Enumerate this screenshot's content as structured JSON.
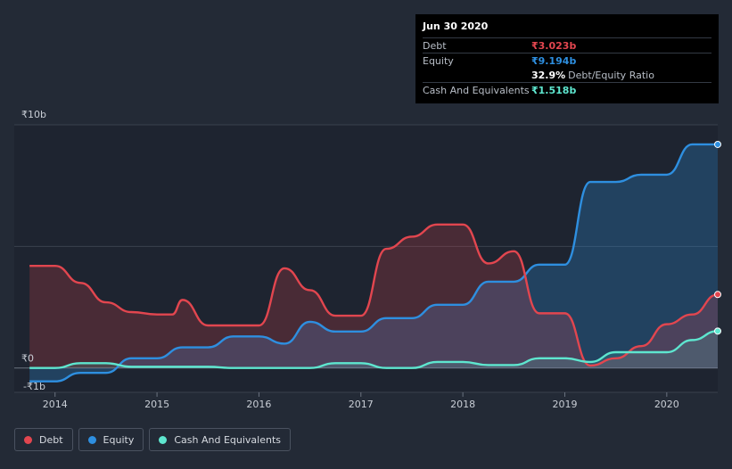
{
  "tooltip": {
    "date": "Jun 30 2020",
    "rows": [
      {
        "label": "Debt",
        "value": "₹3.023b"
      },
      {
        "label": "Equity",
        "value": "₹9.194b"
      },
      {
        "label": "",
        "value": "32.9%",
        "extra": "Debt/Equity Ratio"
      },
      {
        "label": "Cash And Equivalents",
        "value": "₹1.518b"
      }
    ]
  },
  "legend": [
    {
      "label": "Debt"
    },
    {
      "label": "Equity"
    },
    {
      "label": "Cash And Equivalents"
    }
  ],
  "colors": {
    "debt": "#e2464f",
    "equity": "#2e8fe0",
    "cash": "#5ee6cf",
    "background": "#232a36",
    "tooltip_bg": "#000000"
  },
  "chart_data": {
    "type": "area",
    "title": "",
    "xlabel": "",
    "ylabel": "",
    "ylim": [
      -1,
      10
    ],
    "y_ticks": [
      {
        "value": 10,
        "label": "₹10b"
      },
      {
        "value": 0,
        "label": "₹0"
      },
      {
        "value": -1,
        "label": "-₹1b"
      }
    ],
    "x_ticks": [
      {
        "value": 2014,
        "label": "2014"
      },
      {
        "value": 2015,
        "label": "2015"
      },
      {
        "value": 2016,
        "label": "2016"
      },
      {
        "value": 2017,
        "label": "2017"
      },
      {
        "value": 2018,
        "label": "2018"
      },
      {
        "value": 2019,
        "label": "2019"
      },
      {
        "value": 2020,
        "label": "2020"
      }
    ],
    "xlim": [
      2013.6,
      2020.5
    ],
    "series": [
      {
        "name": "Debt",
        "unit": "₹b",
        "points": [
          [
            2013.75,
            4.2
          ],
          [
            2014.0,
            4.2
          ],
          [
            2014.25,
            3.5
          ],
          [
            2014.5,
            2.7
          ],
          [
            2014.75,
            2.3
          ],
          [
            2015.0,
            2.2
          ],
          [
            2015.15,
            2.2
          ],
          [
            2015.25,
            2.8
          ],
          [
            2015.5,
            1.75
          ],
          [
            2015.75,
            1.75
          ],
          [
            2016.0,
            1.75
          ],
          [
            2016.25,
            4.1
          ],
          [
            2016.5,
            3.2
          ],
          [
            2016.75,
            2.15
          ],
          [
            2017.0,
            2.15
          ],
          [
            2017.25,
            4.9
          ],
          [
            2017.5,
            5.4
          ],
          [
            2017.75,
            5.9
          ],
          [
            2018.0,
            5.9
          ],
          [
            2018.25,
            4.3
          ],
          [
            2018.5,
            4.8
          ],
          [
            2018.75,
            2.25
          ],
          [
            2019.0,
            2.25
          ],
          [
            2019.25,
            0.1
          ],
          [
            2019.5,
            0.4
          ],
          [
            2019.75,
            0.9
          ],
          [
            2020.0,
            1.8
          ],
          [
            2020.25,
            2.2
          ],
          [
            2020.5,
            3.023
          ]
        ]
      },
      {
        "name": "Equity",
        "unit": "₹b",
        "points": [
          [
            2013.75,
            -0.55
          ],
          [
            2014.0,
            -0.55
          ],
          [
            2014.25,
            -0.2
          ],
          [
            2014.5,
            -0.2
          ],
          [
            2014.75,
            0.4
          ],
          [
            2015.0,
            0.4
          ],
          [
            2015.25,
            0.85
          ],
          [
            2015.5,
            0.85
          ],
          [
            2015.75,
            1.3
          ],
          [
            2016.0,
            1.3
          ],
          [
            2016.25,
            1.0
          ],
          [
            2016.5,
            1.9
          ],
          [
            2016.75,
            1.5
          ],
          [
            2017.0,
            1.5
          ],
          [
            2017.25,
            2.05
          ],
          [
            2017.5,
            2.05
          ],
          [
            2017.75,
            2.6
          ],
          [
            2018.0,
            2.6
          ],
          [
            2018.25,
            3.55
          ],
          [
            2018.5,
            3.55
          ],
          [
            2018.75,
            4.25
          ],
          [
            2019.0,
            4.25
          ],
          [
            2019.25,
            7.65
          ],
          [
            2019.5,
            7.65
          ],
          [
            2019.75,
            7.95
          ],
          [
            2020.0,
            7.95
          ],
          [
            2020.25,
            9.194
          ],
          [
            2020.5,
            9.194
          ]
        ]
      },
      {
        "name": "Cash And Equivalents",
        "unit": "₹b",
        "points": [
          [
            2013.75,
            0.0
          ],
          [
            2014.0,
            0.0
          ],
          [
            2014.25,
            0.2
          ],
          [
            2014.5,
            0.2
          ],
          [
            2014.75,
            0.05
          ],
          [
            2015.0,
            0.05
          ],
          [
            2015.5,
            0.05
          ],
          [
            2015.75,
            0.0
          ],
          [
            2016.0,
            0.0
          ],
          [
            2016.5,
            0.0
          ],
          [
            2016.75,
            0.2
          ],
          [
            2017.0,
            0.2
          ],
          [
            2017.25,
            0.0
          ],
          [
            2017.5,
            0.0
          ],
          [
            2017.75,
            0.25
          ],
          [
            2018.0,
            0.25
          ],
          [
            2018.25,
            0.12
          ],
          [
            2018.5,
            0.12
          ],
          [
            2018.75,
            0.4
          ],
          [
            2019.0,
            0.4
          ],
          [
            2019.25,
            0.25
          ],
          [
            2019.5,
            0.65
          ],
          [
            2019.75,
            0.65
          ],
          [
            2020.0,
            0.65
          ],
          [
            2020.25,
            1.15
          ],
          [
            2020.5,
            1.518
          ]
        ]
      }
    ]
  }
}
